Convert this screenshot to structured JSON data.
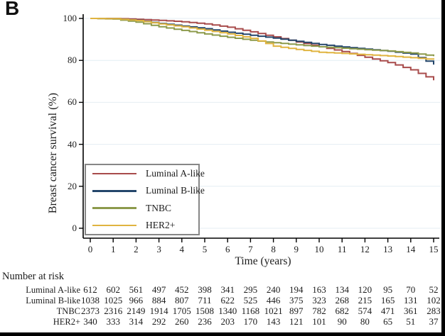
{
  "panel_label": "B",
  "chart_data": {
    "type": "line",
    "subtype": "kaplan-meier-step",
    "xlabel": "Time (years)",
    "ylabel": "Breast cancer survival (%)",
    "xlim": [
      0,
      15
    ],
    "ylim": [
      0,
      100
    ],
    "x_ticks": [
      0,
      1,
      2,
      3,
      4,
      5,
      6,
      7,
      8,
      9,
      10,
      11,
      12,
      13,
      14,
      15
    ],
    "y_ticks": [
      0,
      20,
      40,
      60,
      80,
      100
    ],
    "grid": "horizontal",
    "gridline_color": "#e4edf3",
    "axis_color": "#000000",
    "legend_position": "lower-left-box",
    "series": [
      {
        "name": "Luminal A-like",
        "color": "#A84B4B",
        "values": [
          100,
          100,
          99.6,
          99.1,
          98.4,
          97.4,
          95.8,
          93.6,
          91.2,
          88.8,
          86.5,
          84.2,
          81.5,
          79,
          75.5,
          70.5
        ]
      },
      {
        "name": "Luminal B-like",
        "color": "#24466B",
        "values": [
          100,
          99.9,
          99.1,
          97.6,
          96.4,
          95.1,
          93.4,
          92.0,
          90.6,
          89.1,
          87.6,
          86.4,
          85.4,
          84.4,
          83,
          78
        ]
      },
      {
        "name": "TNBC",
        "color": "#8C9A4B",
        "values": [
          100,
          99.7,
          98.2,
          96.0,
          94.3,
          92.6,
          91.0,
          89.6,
          88.4,
          87.4,
          86.5,
          85.8,
          85.1,
          84.5,
          83.5,
          82
        ]
      },
      {
        "name": "HER2+",
        "color": "#E0B440",
        "values": [
          100,
          99.9,
          99.0,
          97.4,
          96.0,
          94.4,
          92.6,
          90.5,
          86.8,
          85.2,
          83.9,
          83.3,
          82.7,
          82.1,
          81.3,
          80.3
        ]
      }
    ]
  },
  "number_at_risk": {
    "heading": "Number at risk",
    "rows": [
      {
        "label": "Luminal A-like",
        "counts": [
          612,
          602,
          561,
          497,
          452,
          398,
          341,
          295,
          240,
          194,
          163,
          134,
          120,
          95,
          70,
          52
        ]
      },
      {
        "label": "Luminal B-like",
        "counts": [
          1038,
          1025,
          966,
          884,
          807,
          711,
          622,
          525,
          446,
          375,
          323,
          268,
          215,
          165,
          131,
          102
        ]
      },
      {
        "label": "TNBC",
        "counts": [
          2373,
          2316,
          2149,
          1914,
          1705,
          1508,
          1340,
          1168,
          1021,
          897,
          782,
          682,
          574,
          471,
          361,
          283
        ]
      },
      {
        "label": "HER2+",
        "counts": [
          340,
          333,
          314,
          292,
          260,
          236,
          203,
          170,
          143,
          121,
          101,
          90,
          80,
          65,
          51,
          37
        ]
      }
    ]
  }
}
